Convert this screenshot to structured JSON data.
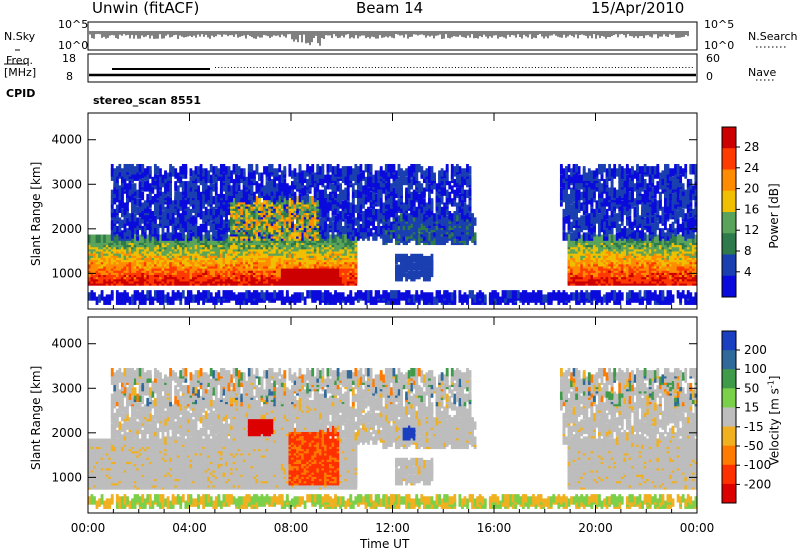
{
  "header": {
    "left_title": "Unwin (fitACF)",
    "center_title": "Beam 14",
    "right_title": "15/Apr/2010"
  },
  "status_rows": {
    "n_sky_label": "N.Sky",
    "n_search_label": "N.Search",
    "n_sky_ticks": [
      "10^5",
      "10^0"
    ],
    "n_search_ticks": [
      "10^5",
      "10^0"
    ],
    "freq_label_1": "Freq.",
    "freq_label_2": "[MHz]",
    "freq_ticks": [
      "18",
      "8"
    ],
    "nave_label": "Nave",
    "nave_ticks": [
      "60",
      "0"
    ],
    "cpid_label": "CPID",
    "cpid_value": "stereo_scan 8551"
  },
  "chart_data": [
    {
      "type": "heatmap",
      "name": "power-panel",
      "ylabel": "Slant Range [km]",
      "yticks": [
        1000,
        2000,
        3000,
        4000
      ],
      "ylim": [
        200,
        4600
      ],
      "xticks": [
        "00:00",
        "04:00",
        "08:00",
        "12:00",
        "16:00",
        "20:00",
        "00:00"
      ],
      "xlim_hours": [
        0,
        24
      ],
      "colorbar_label": "Power [dB]",
      "colorbar_ticks": [
        "28",
        "24",
        "20",
        "16",
        "12",
        "8",
        "4"
      ],
      "colorbar_colors": [
        "#cc0000",
        "#ff3b00",
        "#ff8c00",
        "#f0c000",
        "#5aa35a",
        "#2f7a4a",
        "#1a3fb0",
        "#0a0adc"
      ]
    },
    {
      "type": "heatmap",
      "name": "velocity-panel",
      "ylabel": "Slant Range [km]",
      "yticks": [
        1000,
        2000,
        3000,
        4000
      ],
      "ylim": [
        200,
        4600
      ],
      "xticks": [
        "00:00",
        "04:00",
        "08:00",
        "12:00",
        "16:00",
        "20:00",
        "00:00"
      ],
      "xlabel": "Time UT",
      "colorbar_label_main": "Velocity [m s",
      "colorbar_label_sup": "-1",
      "colorbar_label_end": "]",
      "colorbar_ticks": [
        "200",
        "100",
        "50",
        "15",
        "-15",
        "-50",
        "-100",
        "-200"
      ],
      "colorbar_colors": [
        "#1a3fc0",
        "#2f6a9a",
        "#3f9a4a",
        "#7bd04a",
        "#bdbdbd",
        "#f0b020",
        "#ff7a00",
        "#ff3000",
        "#dd0000"
      ]
    }
  ]
}
